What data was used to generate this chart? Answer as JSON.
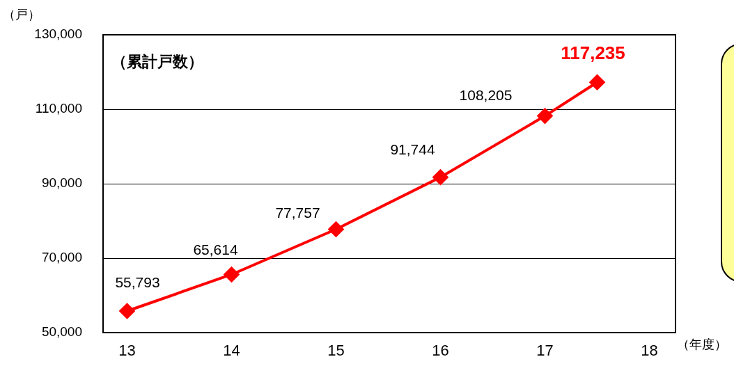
{
  "chart_data": {
    "type": "line",
    "x": [
      13,
      14,
      15,
      16,
      17,
      17.5
    ],
    "xlim": [
      12.77,
      18.25
    ],
    "xticks": [
      13,
      14,
      15,
      16,
      17,
      18
    ],
    "ylim": [
      50000,
      130000
    ],
    "yticks": [
      {
        "value": 50000,
        "label": "50,000"
      },
      {
        "value": 70000,
        "label": "70,000"
      },
      {
        "value": 90000,
        "label": "90,000"
      },
      {
        "value": 110000,
        "label": "110,000"
      },
      {
        "value": 130000,
        "label": "130,000"
      }
    ],
    "ylabel": "（戸）",
    "xlabel": "（年度）",
    "annotations": [
      "（累計戸数）"
    ],
    "series": [
      {
        "color": "#ff0000",
        "values": [
          55793,
          65614,
          77757,
          91744,
          108205,
          117235
        ],
        "value_labels": [
          "55,793",
          "65,614",
          "77,757",
          "91,744",
          "108,205",
          "117,235"
        ]
      }
    ],
    "marker": "diamond",
    "line_style": "solid",
    "grid": "y",
    "legend": false
  }
}
